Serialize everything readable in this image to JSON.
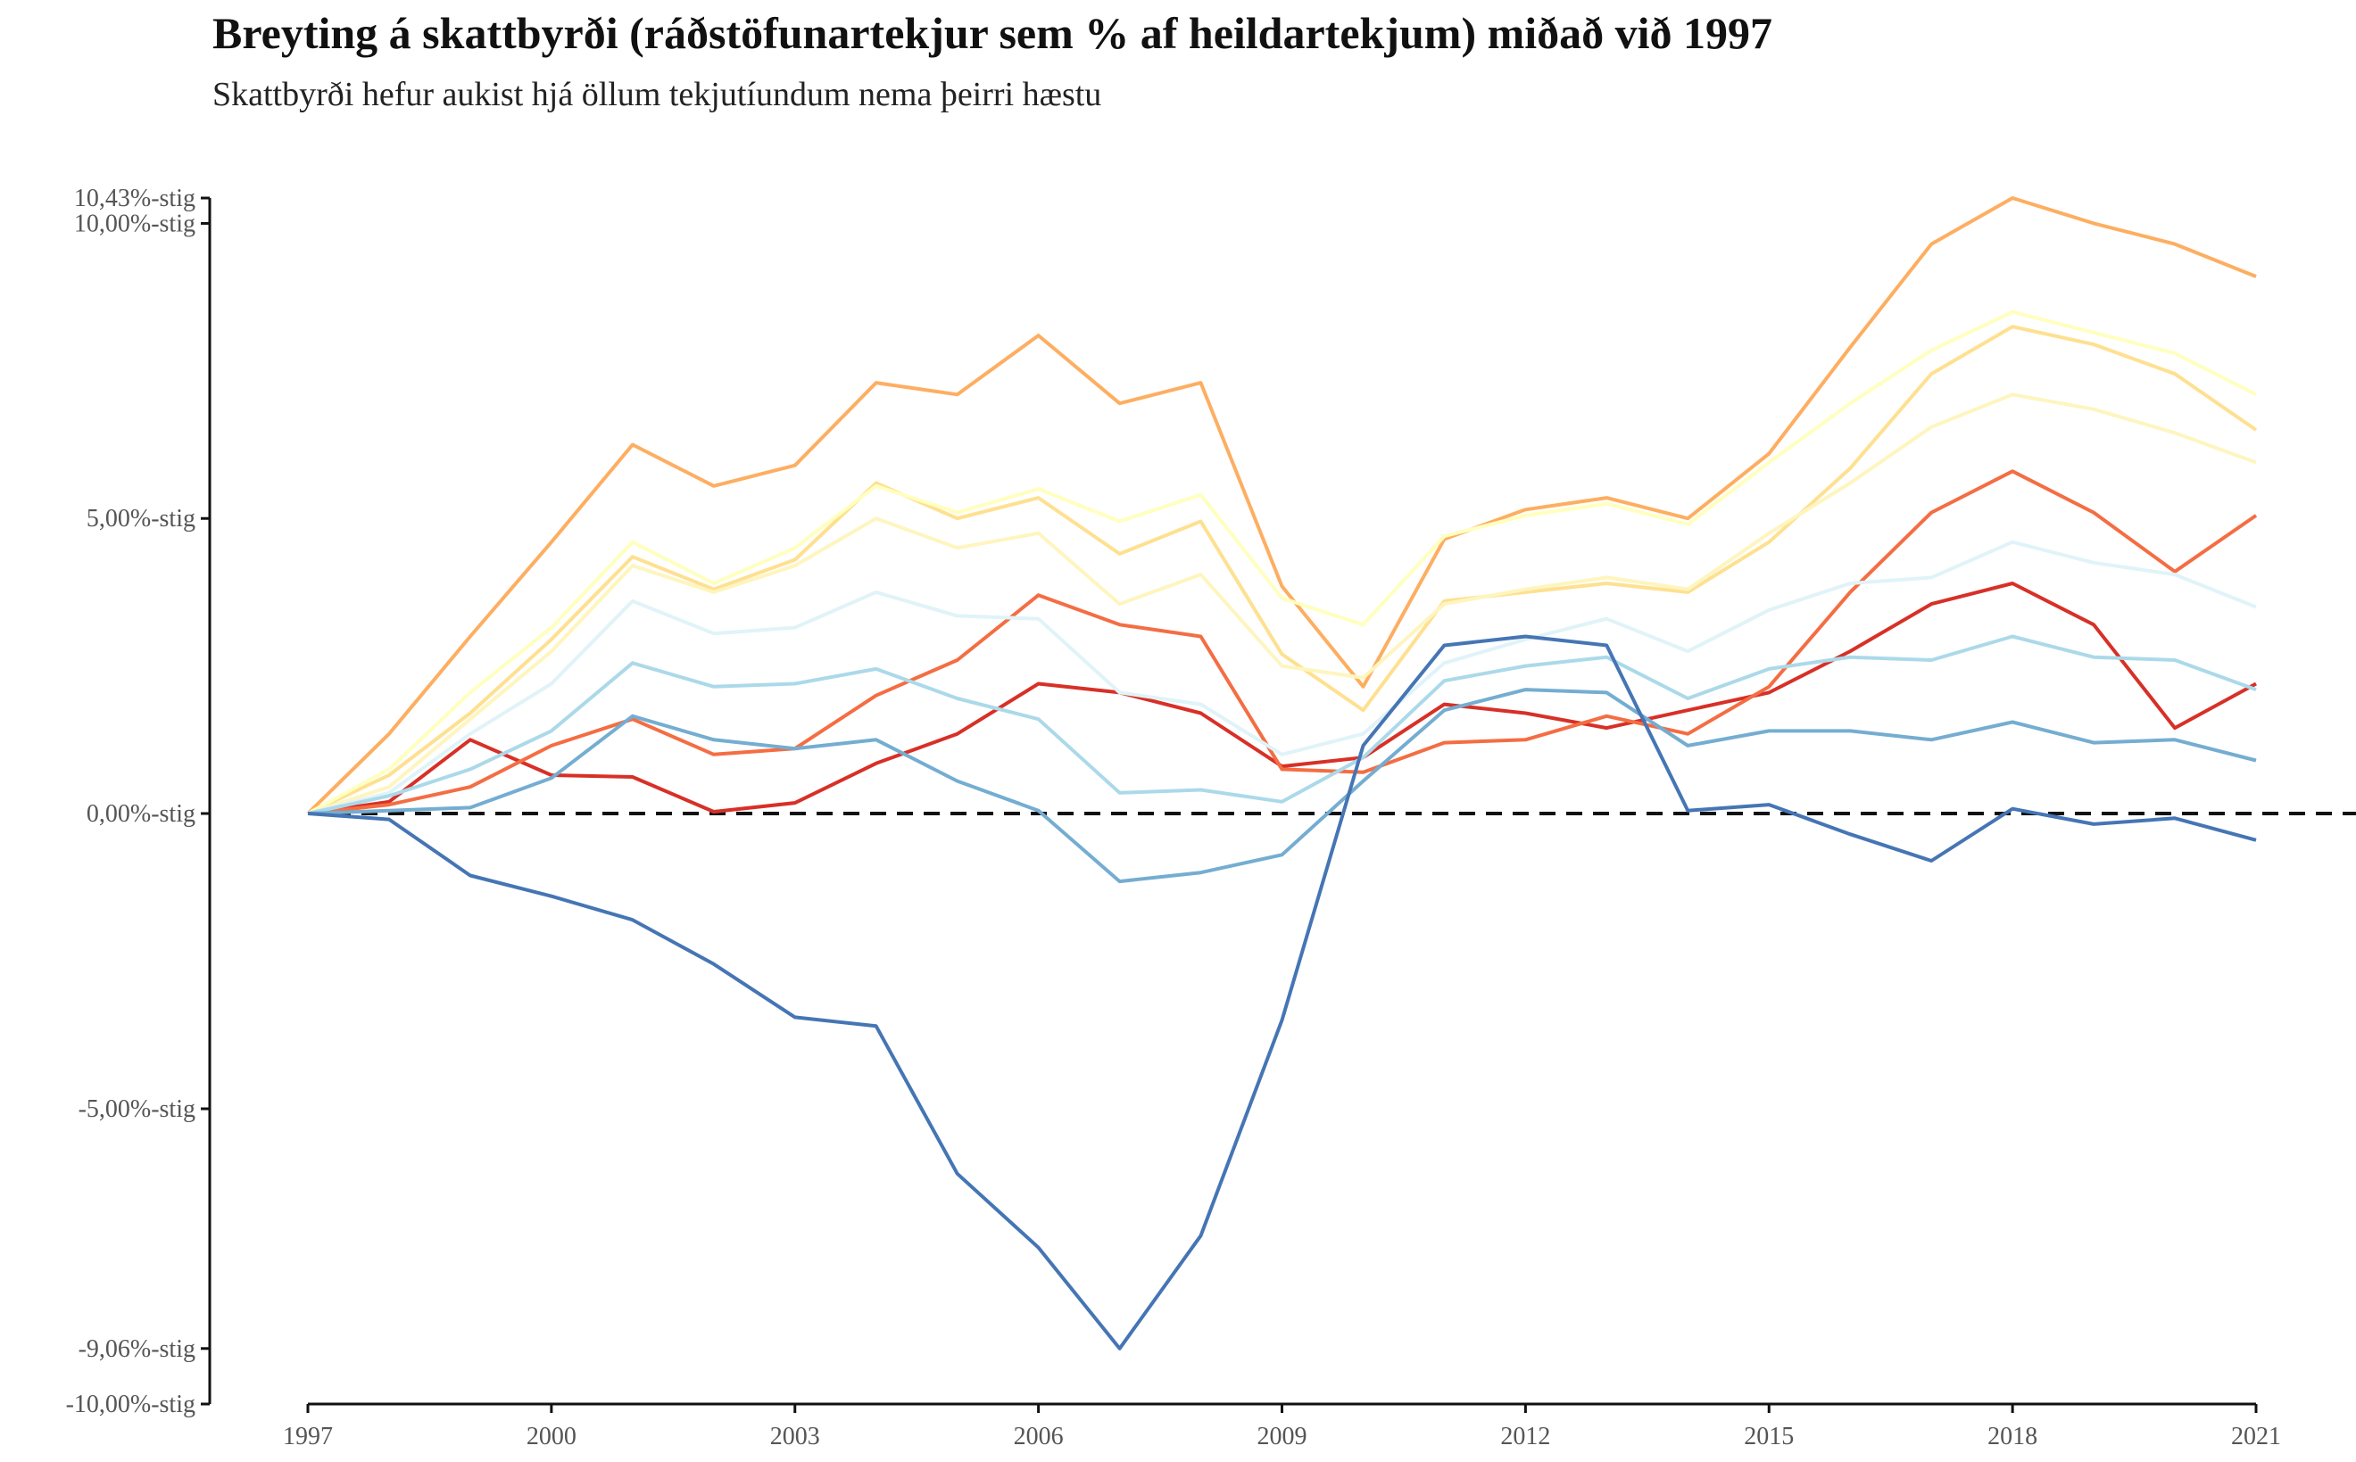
{
  "title": "Breyting á skattbyrði (ráðstöfunartekjur sem % af heildartekjum) miðað við 1997",
  "subtitle": "Skattbyrði hefur aukist hjá öllum tekjutíundum nema þeirri hæstu",
  "chart_data": {
    "type": "line",
    "title": "Breyting á skattbyrði (ráðstöfunartekjur sem % af heildartekjum) miðað við 1997",
    "subtitle": "Skattbyrði hefur aukist hjá öllum tekjutíundum nema þeirri hæstu",
    "xlabel": "",
    "ylabel": "",
    "xlim": [
      1997,
      2021
    ],
    "ylim": [
      -10,
      10.43
    ],
    "x": [
      1997,
      1998,
      1999,
      2000,
      2001,
      2002,
      2003,
      2004,
      2005,
      2006,
      2007,
      2008,
      2009,
      2010,
      2011,
      2012,
      2013,
      2014,
      2015,
      2016,
      2017,
      2018,
      2019,
      2020,
      2021
    ],
    "x_ticks": [
      "1997",
      "2000",
      "2003",
      "2006",
      "2009",
      "2012",
      "2015",
      "2018",
      "2021"
    ],
    "y_ticks": [
      {
        "value": 10.43,
        "label": "10,43%-stig"
      },
      {
        "value": 10,
        "label": "10,00%-stig"
      },
      {
        "value": 5,
        "label": "5,00%-stig"
      },
      {
        "value": 0,
        "label": "0,00%-stig"
      },
      {
        "value": -5,
        "label": "-5,00%-stig"
      },
      {
        "value": -9.06,
        "label": "-9,06%-stig"
      },
      {
        "value": -10,
        "label": "-10,00%-stig"
      }
    ],
    "reference_line": {
      "y": 0,
      "style": "dashed"
    },
    "grid": false,
    "legend": "none",
    "series": [
      {
        "color": "#d73027",
        "values": [
          0,
          0.2,
          1.25,
          0.65,
          0.62,
          0.03,
          0.18,
          0.85,
          1.35,
          2.2,
          2.05,
          1.7,
          0.8,
          0.95,
          1.85,
          1.7,
          1.45,
          1.75,
          2.05,
          2.75,
          3.55,
          3.9,
          3.2,
          1.45,
          2.2
        ]
      },
      {
        "color": "#f46d43",
        "values": [
          0,
          0.15,
          0.45,
          1.15,
          1.6,
          1.0,
          1.1,
          2.0,
          2.6,
          3.7,
          3.2,
          3.0,
          0.75,
          0.7,
          1.2,
          1.25,
          1.65,
          1.35,
          2.15,
          3.75,
          5.1,
          5.8,
          5.1,
          4.1,
          5.05
        ]
      },
      {
        "color": "#fdae61",
        "values": [
          0,
          1.35,
          3.0,
          4.6,
          6.25,
          5.55,
          5.9,
          7.3,
          7.1,
          8.1,
          6.95,
          7.3,
          3.85,
          2.15,
          4.65,
          5.15,
          5.35,
          5.0,
          6.1,
          7.9,
          9.65,
          10.43,
          10.0,
          9.65,
          9.1
        ]
      },
      {
        "color": "#fee090",
        "values": [
          0,
          0.65,
          1.7,
          2.95,
          4.35,
          3.8,
          4.3,
          5.6,
          5.0,
          5.35,
          4.4,
          4.95,
          2.7,
          1.75,
          3.6,
          3.75,
          3.9,
          3.75,
          4.6,
          5.85,
          7.45,
          8.25,
          7.95,
          7.45,
          6.5
        ]
      },
      {
        "color": "#ffffbf",
        "values": [
          0,
          0.75,
          2.05,
          3.15,
          4.6,
          3.9,
          4.5,
          5.55,
          5.1,
          5.5,
          4.95,
          5.4,
          3.65,
          3.2,
          4.7,
          5.05,
          5.25,
          4.9,
          5.95,
          6.95,
          7.85,
          8.5,
          8.15,
          7.8,
          7.1
        ]
      },
      {
        "color": "#fef5bf",
        "values": [
          0,
          0.45,
          1.6,
          2.75,
          4.2,
          3.75,
          4.2,
          5.0,
          4.5,
          4.75,
          3.55,
          4.05,
          2.5,
          2.3,
          3.55,
          3.8,
          4.0,
          3.8,
          4.75,
          5.6,
          6.55,
          7.1,
          6.85,
          6.45,
          5.95
        ]
      },
      {
        "color": "#e0f3f8",
        "values": [
          0,
          0.35,
          1.35,
          2.2,
          3.6,
          3.05,
          3.15,
          3.75,
          3.35,
          3.3,
          2.05,
          1.85,
          1.0,
          1.35,
          2.55,
          2.95,
          3.3,
          2.75,
          3.45,
          3.9,
          4.0,
          4.6,
          4.25,
          4.05,
          3.5
        ]
      },
      {
        "color": "#abd9e9",
        "values": [
          0,
          0.3,
          0.75,
          1.4,
          2.55,
          2.15,
          2.2,
          2.45,
          1.95,
          1.6,
          0.35,
          0.4,
          0.2,
          0.95,
          2.25,
          2.5,
          2.65,
          1.95,
          2.45,
          2.65,
          2.6,
          3.0,
          2.65,
          2.6,
          2.1
        ]
      },
      {
        "color": "#74add1",
        "values": [
          0,
          0.05,
          0.1,
          0.6,
          1.65,
          1.25,
          1.1,
          1.25,
          0.55,
          0.05,
          -1.15,
          -1.0,
          -0.7,
          0.55,
          1.75,
          2.1,
          2.05,
          1.15,
          1.4,
          1.4,
          1.25,
          1.55,
          1.2,
          1.25,
          0.9
        ]
      },
      {
        "color": "#4575b4",
        "values": [
          0,
          -0.1,
          -1.05,
          -1.4,
          -1.8,
          -2.55,
          -3.45,
          -3.6,
          -6.1,
          -7.35,
          -9.06,
          -7.15,
          -3.5,
          1.15,
          2.85,
          3.0,
          2.85,
          0.05,
          0.15,
          -0.35,
          -0.8,
          0.08,
          -0.18,
          -0.08,
          -0.45
        ]
      }
    ]
  }
}
